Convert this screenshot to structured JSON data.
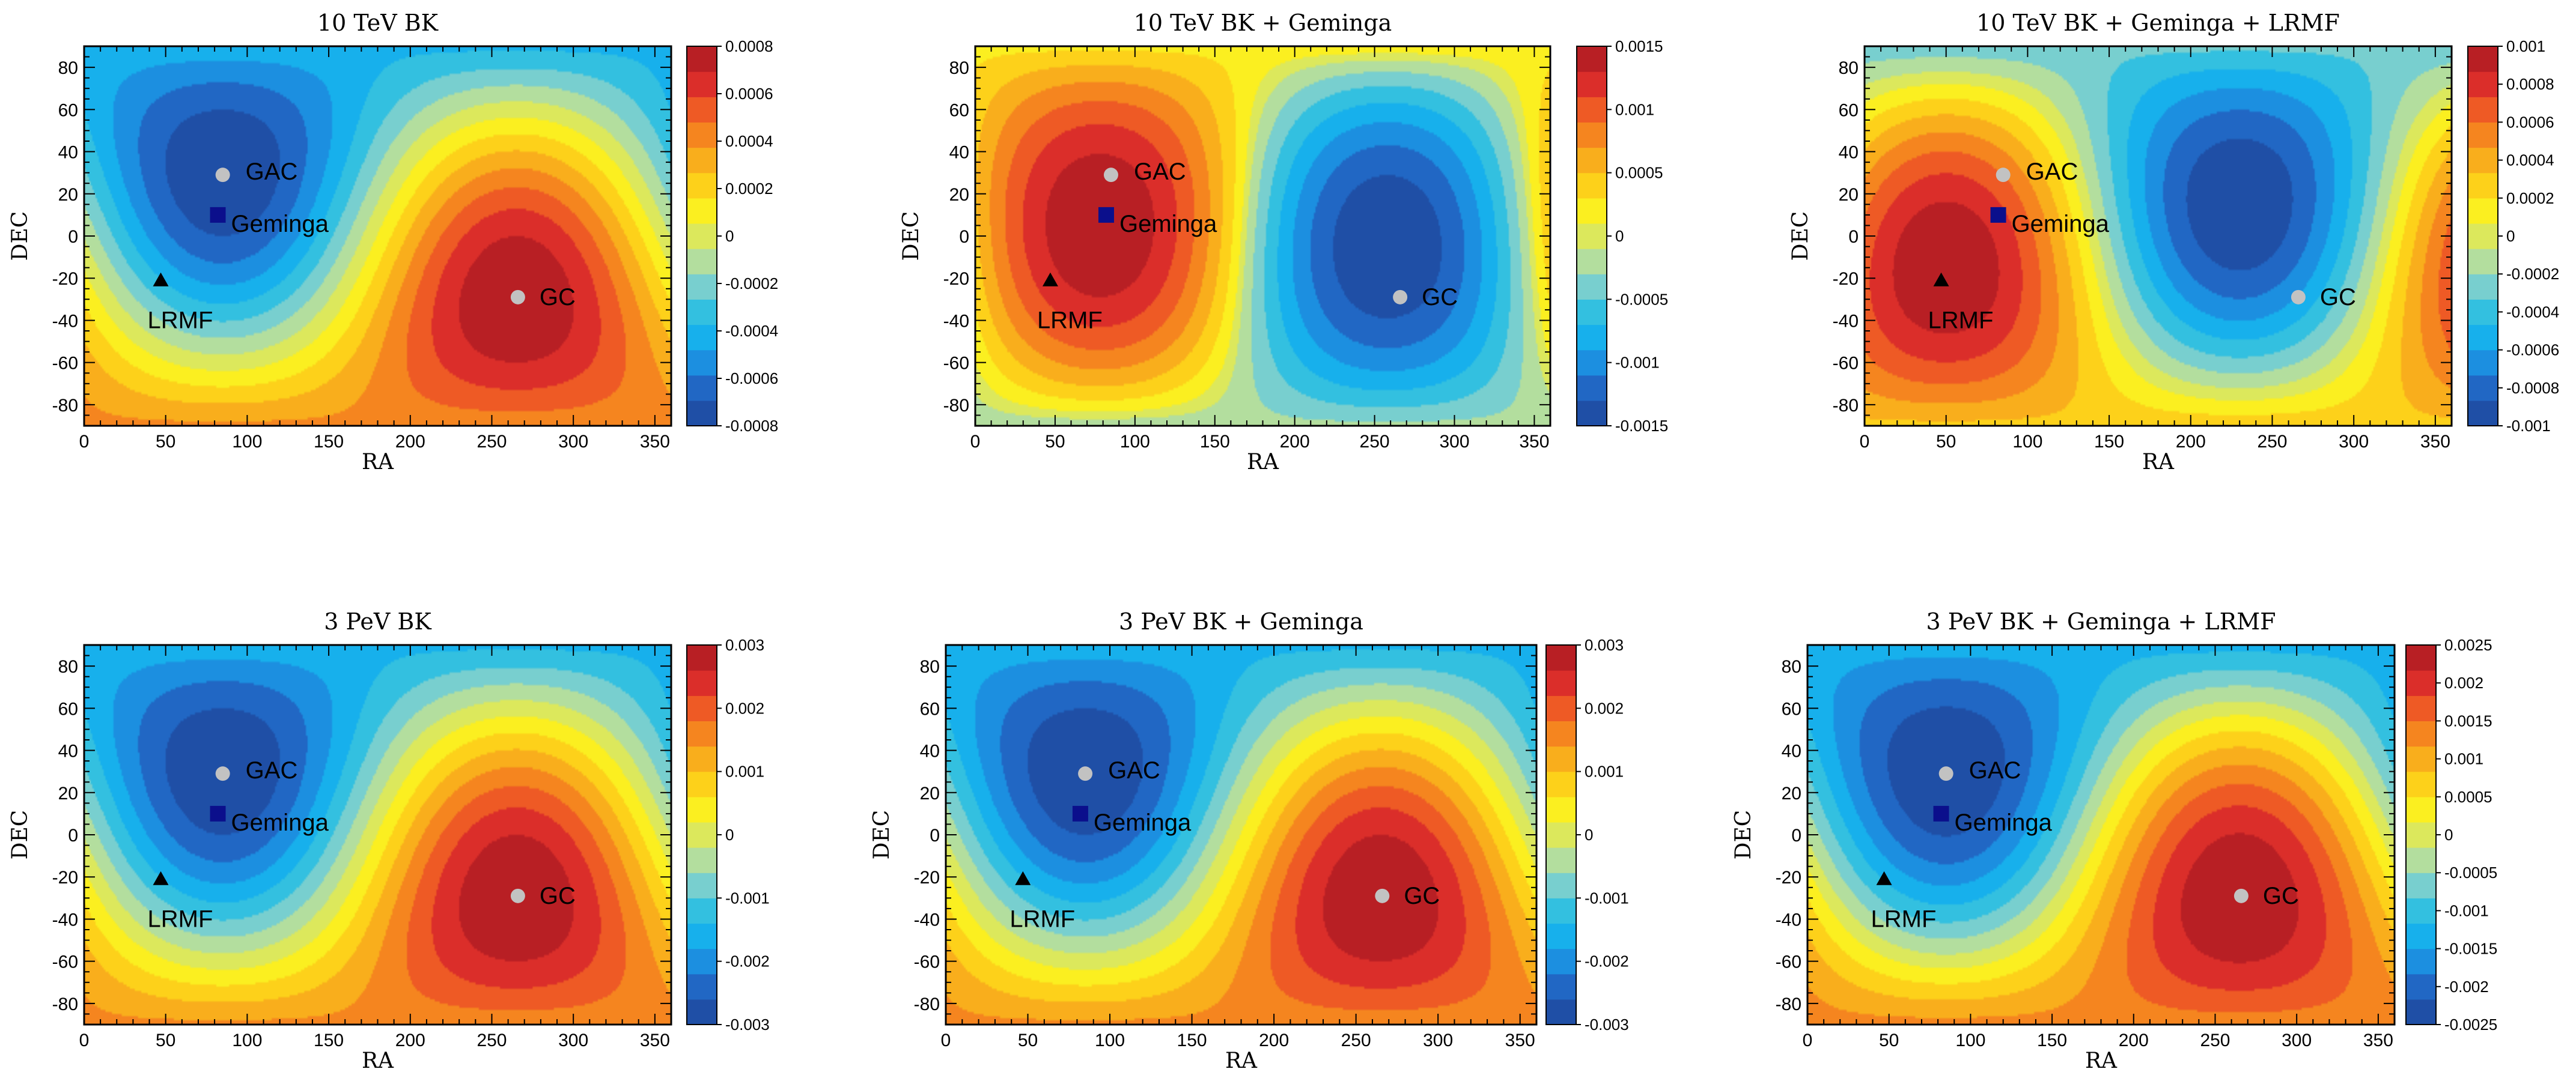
{
  "figure": {
    "colormap": [
      "#1f4fa6",
      "#2167c4",
      "#1c8fe0",
      "#17b0ec",
      "#33c0e0",
      "#78cfcf",
      "#b3de9e",
      "#dce85c",
      "#fbef20",
      "#fdd11a",
      "#f9ae1c",
      "#f5851f",
      "#ee5a25",
      "#db2e2a",
      "#b81f24"
    ],
    "marker_colors": {
      "gac_gc": "#c2c2c2",
      "geminga": "#0b0f8c",
      "lrmf": "#000000"
    }
  },
  "chart_data": [
    {
      "type": "heatmap",
      "title": "10 TeV  BK",
      "xlabel": "RA",
      "ylabel": "DEC",
      "xlim": [
        0,
        360
      ],
      "ylim": [
        -90,
        90
      ],
      "xticks": [
        "0",
        "50",
        "100",
        "150",
        "200",
        "250",
        "300",
        "350"
      ],
      "yticks": [
        "80",
        "60",
        "40",
        "20",
        "0",
        "-20",
        "-40",
        "-60",
        "-80"
      ],
      "field": {
        "dipole_ra": 265,
        "dipole_dec": -30,
        "amplitude": 0.0008,
        "sharpness": 1.0
      },
      "colorbar": {
        "min": -0.0008,
        "max": 0.0008,
        "ticks": [
          "0.0008",
          "0.0006",
          "0.0004",
          "0.0002",
          "0",
          "-0.0002",
          "-0.0004",
          "-0.0006",
          "-0.0008"
        ]
      },
      "sources": [
        {
          "name": "GAC",
          "ra": 85,
          "dec": 29,
          "marker": "circle"
        },
        {
          "name": "Geminga",
          "ra": 82,
          "dec": 10,
          "marker": "square"
        },
        {
          "name": "LRMF",
          "ra": 47,
          "dec": -21,
          "marker": "triangle"
        },
        {
          "name": "GC",
          "ra": 266,
          "dec": -29,
          "marker": "circle"
        }
      ]
    },
    {
      "type": "heatmap",
      "title": "10 TeV  BK + Geminga",
      "xlabel": "RA",
      "ylabel": "DEC",
      "xlim": [
        0,
        360
      ],
      "ylim": [
        -90,
        90
      ],
      "xticks": [
        "0",
        "50",
        "100",
        "150",
        "200",
        "250",
        "300",
        "350"
      ],
      "yticks": [
        "80",
        "60",
        "40",
        "20",
        "0",
        "-20",
        "-40",
        "-60",
        "-80"
      ],
      "field": {
        "dipole_ra": 78,
        "dipole_dec": 5,
        "amplitude": 0.0015,
        "sharpness": 1.3
      },
      "colorbar": {
        "min": -0.0015,
        "max": 0.0015,
        "ticks": [
          "0.0015",
          "0.001",
          "0.0005",
          "0",
          "-0.0005",
          "-0.001",
          "-0.0015"
        ]
      },
      "sources": [
        {
          "name": "GAC",
          "ra": 85,
          "dec": 29,
          "marker": "circle"
        },
        {
          "name": "Geminga",
          "ra": 82,
          "dec": 10,
          "marker": "square"
        },
        {
          "name": "LRMF",
          "ra": 47,
          "dec": -21,
          "marker": "triangle"
        },
        {
          "name": "GC",
          "ra": 266,
          "dec": -29,
          "marker": "circle"
        }
      ]
    },
    {
      "type": "heatmap",
      "title": "10 TeV  BK + Geminga + LRMF",
      "xlabel": "RA",
      "ylabel": "DEC",
      "xlim": [
        0,
        360
      ],
      "ylim": [
        -90,
        90
      ],
      "xticks": [
        "0",
        "50",
        "100",
        "150",
        "200",
        "250",
        "300",
        "350"
      ],
      "yticks": [
        "80",
        "60",
        "40",
        "20",
        "0",
        "-20",
        "-40",
        "-60",
        "-80"
      ],
      "field": {
        "dipole_ra": 50,
        "dipole_dec": -15,
        "amplitude": 0.001,
        "sharpness": 1.1
      },
      "colorbar": {
        "min": -0.001,
        "max": 0.001,
        "ticks": [
          "0.001",
          "0.0008",
          "0.0006",
          "0.0004",
          "0.0002",
          "0",
          "-0.0002",
          "-0.0004",
          "-0.0006",
          "-0.0008",
          "-0.001"
        ]
      },
      "sources": [
        {
          "name": "GAC",
          "ra": 85,
          "dec": 29,
          "marker": "circle"
        },
        {
          "name": "Geminga",
          "ra": 82,
          "dec": 10,
          "marker": "square"
        },
        {
          "name": "LRMF",
          "ra": 47,
          "dec": -21,
          "marker": "triangle"
        },
        {
          "name": "GC",
          "ra": 266,
          "dec": -29,
          "marker": "circle"
        }
      ]
    },
    {
      "type": "heatmap",
      "title": "3 PeV  BK",
      "xlabel": "RA",
      "ylabel": "DEC",
      "xlim": [
        0,
        360
      ],
      "ylim": [
        -90,
        90
      ],
      "xticks": [
        "0",
        "50",
        "100",
        "150",
        "200",
        "250",
        "300",
        "350"
      ],
      "yticks": [
        "80",
        "60",
        "40",
        "20",
        "0",
        "-20",
        "-40",
        "-60",
        "-80"
      ],
      "field": {
        "dipole_ra": 265,
        "dipole_dec": -30,
        "amplitude": 0.003,
        "sharpness": 1.0
      },
      "colorbar": {
        "min": -0.003,
        "max": 0.003,
        "ticks": [
          "0.003",
          "0.002",
          "0.001",
          "0",
          "-0.001",
          "-0.002",
          "-0.003"
        ]
      },
      "sources": [
        {
          "name": "GAC",
          "ra": 85,
          "dec": 29,
          "marker": "circle"
        },
        {
          "name": "Geminga",
          "ra": 82,
          "dec": 10,
          "marker": "square"
        },
        {
          "name": "LRMF",
          "ra": 47,
          "dec": -21,
          "marker": "triangle"
        },
        {
          "name": "GC",
          "ra": 266,
          "dec": -29,
          "marker": "circle"
        }
      ]
    },
    {
      "type": "heatmap",
      "title": "3 PeV BK + Geminga",
      "xlabel": "RA",
      "ylabel": "DEC",
      "xlim": [
        0,
        360
      ],
      "ylim": [
        -90,
        90
      ],
      "xticks": [
        "0",
        "50",
        "100",
        "150",
        "200",
        "250",
        "300",
        "350"
      ],
      "yticks": [
        "80",
        "60",
        "40",
        "20",
        "0",
        "-20",
        "-40",
        "-60",
        "-80"
      ],
      "field": {
        "dipole_ra": 265,
        "dipole_dec": -30,
        "amplitude": 0.003,
        "sharpness": 1.0
      },
      "colorbar": {
        "min": -0.003,
        "max": 0.003,
        "ticks": [
          "0.003",
          "0.002",
          "0.001",
          "0",
          "-0.001",
          "-0.002",
          "-0.003"
        ]
      },
      "sources": [
        {
          "name": "GAC",
          "ra": 85,
          "dec": 29,
          "marker": "circle"
        },
        {
          "name": "Geminga",
          "ra": 82,
          "dec": 10,
          "marker": "square"
        },
        {
          "name": "LRMF",
          "ra": 47,
          "dec": -21,
          "marker": "triangle"
        },
        {
          "name": "GC",
          "ra": 266,
          "dec": -29,
          "marker": "circle"
        }
      ]
    },
    {
      "type": "heatmap",
      "title": "3 PeV BK + Geminga + LRMF",
      "xlabel": "RA",
      "ylabel": "DEC",
      "xlim": [
        0,
        360
      ],
      "ylim": [
        -90,
        90
      ],
      "xticks": [
        "0",
        "50",
        "100",
        "150",
        "200",
        "250",
        "300",
        "350"
      ],
      "yticks": [
        "80",
        "60",
        "40",
        "20",
        "0",
        "-20",
        "-40",
        "-60",
        "-80"
      ],
      "field": {
        "dipole_ra": 265,
        "dipole_dec": -30,
        "amplitude": 0.0025,
        "sharpness": 1.05
      },
      "colorbar": {
        "min": -0.0025,
        "max": 0.0025,
        "ticks": [
          "0.0025",
          "0.002",
          "0.0015",
          "0.001",
          "0.0005",
          "0",
          "-0.0005",
          "-0.001",
          "-0.0015",
          "-0.002",
          "-0.0025"
        ]
      },
      "sources": [
        {
          "name": "GAC",
          "ra": 85,
          "dec": 29,
          "marker": "circle"
        },
        {
          "name": "Geminga",
          "ra": 82,
          "dec": 10,
          "marker": "square"
        },
        {
          "name": "LRMF",
          "ra": 47,
          "dec": -21,
          "marker": "triangle"
        },
        {
          "name": "GC",
          "ra": 266,
          "dec": -29,
          "marker": "circle"
        }
      ]
    }
  ]
}
